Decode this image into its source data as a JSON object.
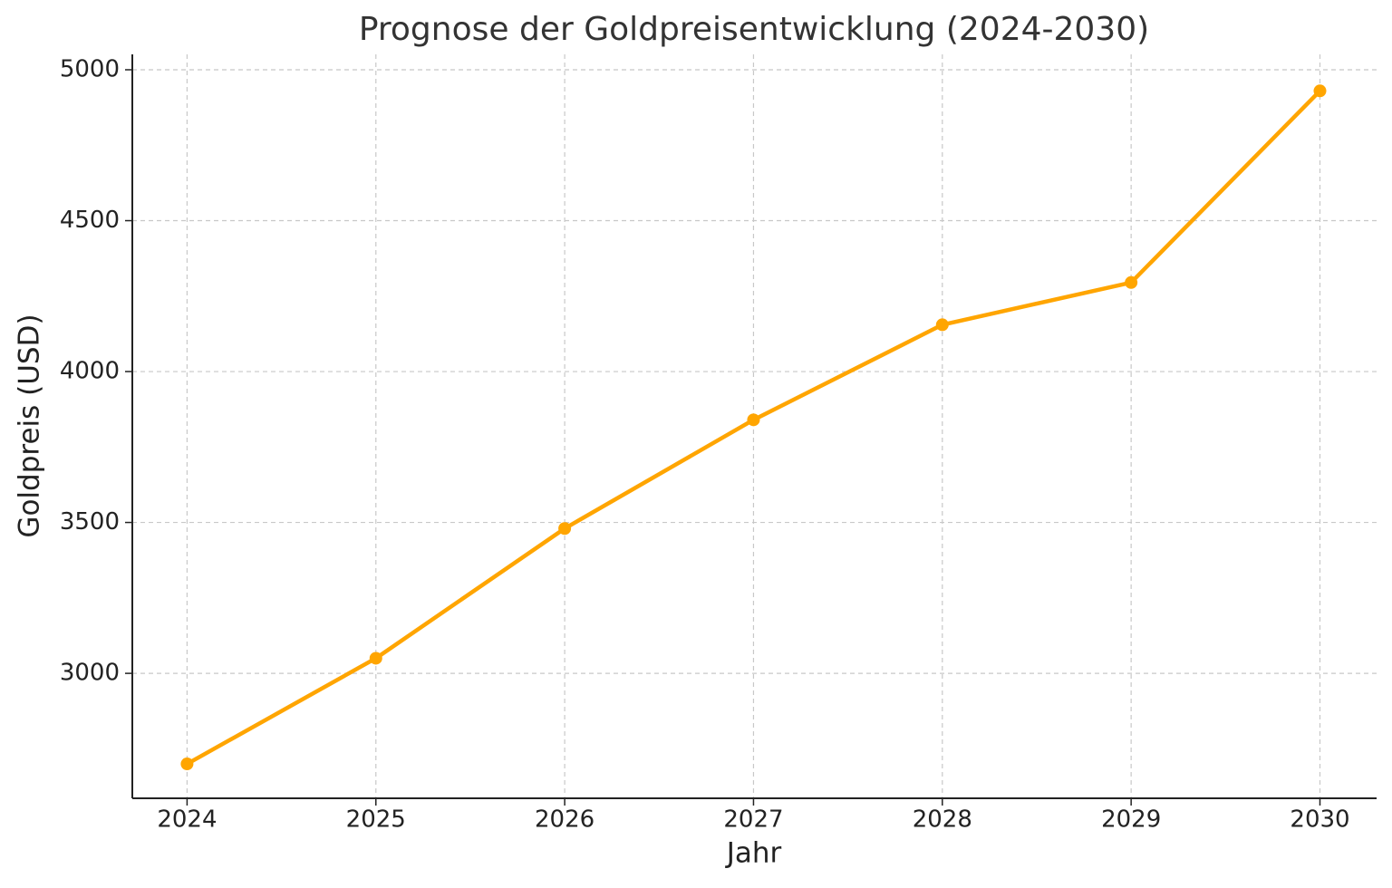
{
  "chart_data": {
    "type": "line",
    "title": "Prognose der Goldpreisentwicklung (2024-2030)",
    "x_label": "Jahr",
    "y_label": "Goldpreis (USD)",
    "x": [
      2024,
      2025,
      2026,
      2027,
      2028,
      2029,
      2030
    ],
    "values": [
      2700,
      3050,
      3480,
      3840,
      4155,
      4295,
      4930
    ],
    "color": "#ffa500",
    "xlim": [
      2023.71,
      2030.3
    ],
    "xticks": [
      2024,
      2025,
      2026,
      2027,
      2028,
      2029,
      2030
    ],
    "ylim": [
      2586,
      5051
    ],
    "yticks": [
      3000,
      3500,
      4000,
      4500,
      5000
    ],
    "grid": true
  }
}
